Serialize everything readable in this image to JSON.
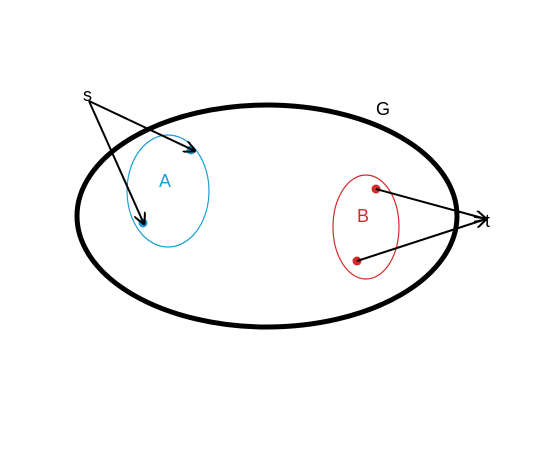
{
  "labels": {
    "graph": "G",
    "source": "s",
    "sink": "t",
    "set_a": "A",
    "set_b": "B"
  },
  "colors": {
    "outline": "#000000",
    "set_a": "#1a9ed8",
    "set_b": "#d42a2a",
    "background": "#ffffff"
  }
}
